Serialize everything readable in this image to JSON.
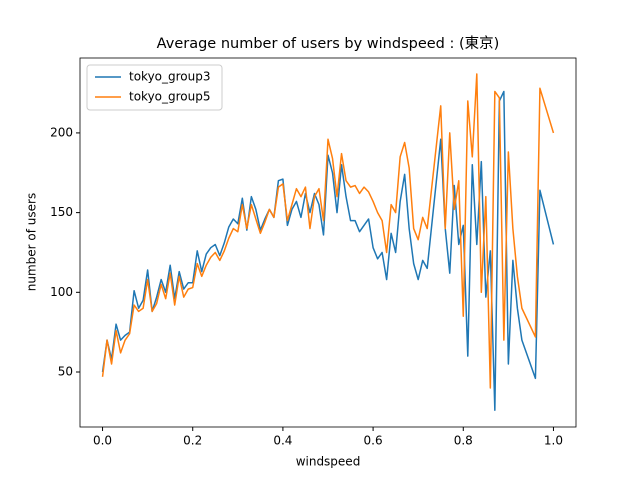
{
  "chart_data": {
    "type": "line",
    "title": "Average number of users by windspeed : (東京)",
    "x_label": "windspeed",
    "y_label": "number of users",
    "x": [
      0,
      0.01,
      0.02,
      0.03,
      0.04,
      0.05,
      0.06,
      0.07,
      0.08,
      0.09,
      0.1,
      0.11,
      0.12,
      0.13,
      0.14,
      0.15,
      0.16,
      0.17,
      0.18,
      0.19,
      0.2,
      0.21,
      0.22,
      0.23,
      0.24,
      0.25,
      0.26,
      0.27,
      0.28,
      0.29,
      0.3,
      0.31,
      0.32,
      0.33,
      0.34,
      0.35,
      0.36,
      0.37,
      0.38,
      0.39,
      0.4,
      0.41,
      0.42,
      0.43,
      0.44,
      0.45,
      0.46,
      0.47,
      0.48,
      0.49,
      0.5,
      0.51,
      0.52,
      0.53,
      0.54,
      0.55,
      0.56,
      0.57,
      0.58,
      0.59,
      0.6,
      0.61,
      0.62,
      0.63,
      0.64,
      0.65,
      0.66,
      0.67,
      0.68,
      0.69,
      0.7,
      0.71,
      0.72,
      0.75,
      0.76,
      0.77,
      0.78,
      0.79,
      0.8,
      0.81,
      0.82,
      0.83,
      0.84,
      0.85,
      0.86,
      0.87,
      0.88,
      0.89,
      0.9,
      0.91,
      0.92,
      0.93,
      0.96,
      0.97,
      1.0
    ],
    "series": [
      {
        "name": "tokyo_group3",
        "color": "#1f77b4",
        "values": [
          50,
          70,
          58,
          80,
          70,
          73,
          75,
          101,
          90,
          95,
          114,
          88,
          97,
          108,
          100,
          117,
          96,
          113,
          102,
          106,
          106,
          126,
          113,
          124,
          128,
          130,
          123,
          131,
          141,
          146,
          143,
          159,
          139,
          160,
          152,
          139,
          146,
          152,
          147,
          170,
          171,
          142,
          152,
          157,
          147,
          162,
          150,
          162,
          155,
          136,
          186,
          175,
          150,
          180,
          160,
          145,
          145,
          138,
          142,
          146,
          128,
          121,
          125,
          108,
          137,
          125,
          157,
          174,
          140,
          118,
          108,
          120,
          115,
          196,
          140,
          112,
          167,
          130,
          142,
          60,
          180,
          130,
          182,
          97,
          126,
          26,
          220,
          226,
          55,
          120,
          90,
          70,
          46,
          164,
          130
        ]
      },
      {
        "name": "tokyo_group5",
        "color": "#ff7f0e",
        "values": [
          47,
          70,
          55,
          76,
          62,
          70,
          74,
          92,
          88,
          90,
          108,
          88,
          93,
          105,
          96,
          112,
          92,
          110,
          97,
          102,
          103,
          118,
          110,
          117,
          122,
          125,
          120,
          126,
          134,
          140,
          138,
          155,
          140,
          155,
          146,
          137,
          144,
          152,
          147,
          166,
          168,
          145,
          155,
          165,
          160,
          166,
          140,
          160,
          165,
          145,
          196,
          184,
          160,
          187,
          170,
          166,
          167,
          162,
          166,
          163,
          157,
          150,
          145,
          125,
          155,
          150,
          185,
          194,
          178,
          140,
          133,
          147,
          140,
          217,
          140,
          200,
          152,
          170,
          85,
          220,
          185,
          237,
          100,
          160,
          40,
          226,
          222,
          70,
          188,
          140,
          110,
          90,
          72,
          228,
          200
        ]
      }
    ],
    "xlim": [
      -0.05,
      1.05
    ],
    "ylim": [
      15.5,
      247
    ],
    "xticks": [
      {
        "value": 0,
        "label": "0.0"
      },
      0.2,
      0.4,
      0.6,
      0.8,
      {
        "value": 1,
        "label": "1.0"
      }
    ],
    "yticks": [
      50,
      100,
      150,
      200
    ],
    "legend": "upper left"
  }
}
